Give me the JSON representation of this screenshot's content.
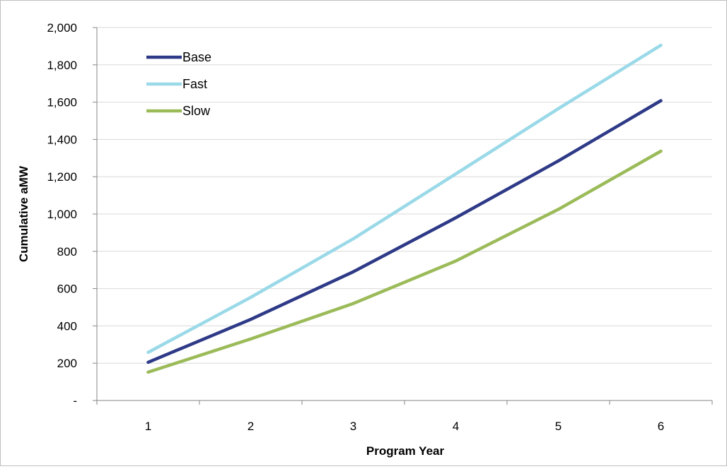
{
  "chart_data": {
    "type": "line",
    "title": "",
    "xlabel": "Program Year",
    "ylabel": "Cumulative aMW",
    "categories": [
      "1",
      "2",
      "3",
      "4",
      "5",
      "6"
    ],
    "ylim": [
      0,
      2000
    ],
    "yticks": [
      0,
      200,
      400,
      600,
      800,
      1000,
      1200,
      1400,
      1600,
      1800,
      2000
    ],
    "ytick_labels": [
      "-",
      "200",
      "400",
      "600",
      "800",
      "1,000",
      "1,200",
      "1,400",
      "1,600",
      "1,800",
      "2,000"
    ],
    "grid": true,
    "legend_position": "top-left",
    "series": [
      {
        "name": "Base",
        "color": "#2E3A87",
        "values": [
          205,
          435,
          690,
          980,
          1285,
          1608
        ]
      },
      {
        "name": "Fast",
        "color": "#9AD9E8",
        "values": [
          258,
          553,
          867,
          1215,
          1565,
          1905
        ]
      },
      {
        "name": "Slow",
        "color": "#9BBB59",
        "values": [
          152,
          330,
          520,
          748,
          1025,
          1337
        ]
      }
    ]
  }
}
